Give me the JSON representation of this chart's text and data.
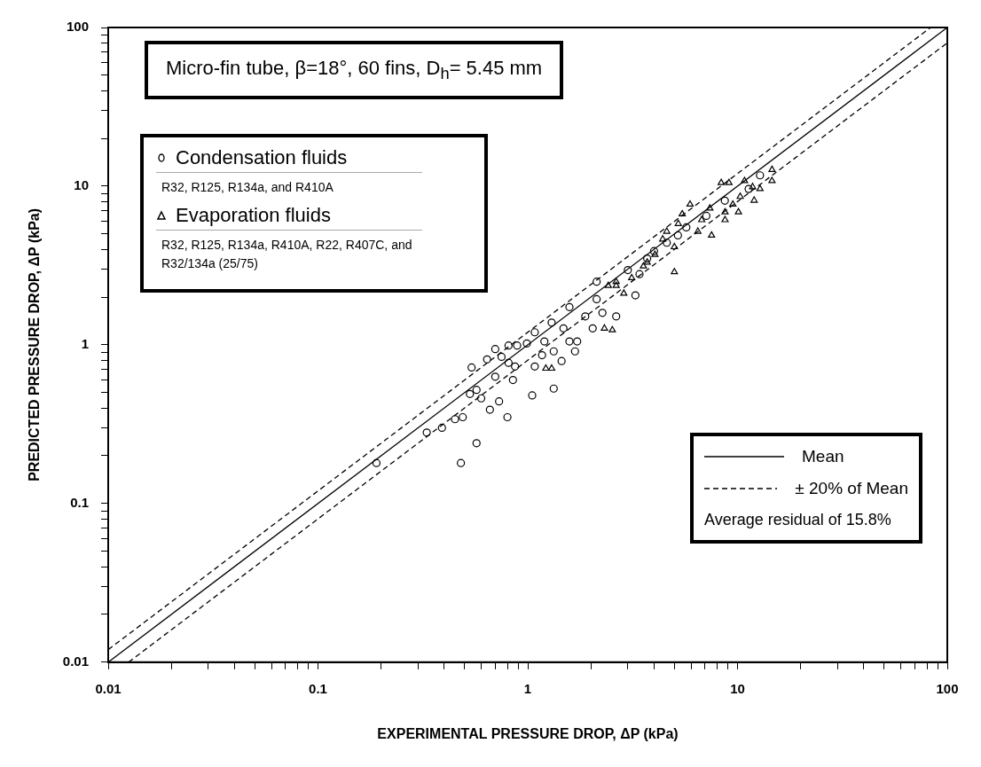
{
  "chart_data": {
    "type": "scatter",
    "title": "Micro-fin tube, β=18°, 60 fins, D$_{h}$= 5.45 mm",
    "xlabel": "EXPERIMENTAL PRESSURE DROP, ΔP (kPa)",
    "ylabel": "PREDICTED PRESSURE DROP, ΔP (kPa)",
    "log": "xy",
    "grid": false,
    "legend": "top left",
    "xlim": [
      0.01,
      100
    ],
    "ylim": [
      0.01,
      100
    ],
    "xticks": [
      0.01,
      {
        "value": 0.02,
        "label": null
      },
      {
        "value": 0.03,
        "label": null
      },
      {
        "value": 0.04,
        "label": null
      },
      {
        "value": 0.05,
        "label": null
      },
      {
        "value": 0.06,
        "label": null
      },
      {
        "value": 0.07,
        "label": null
      },
      {
        "value": 0.08,
        "label": null
      },
      {
        "value": 0.09,
        "label": null
      },
      0.1,
      {
        "value": 0.2,
        "label": null
      },
      {
        "value": 0.3,
        "label": null
      },
      {
        "value": 0.4,
        "label": null
      },
      {
        "value": 0.5,
        "label": null
      },
      {
        "value": 0.6,
        "label": null
      },
      {
        "value": 0.7,
        "label": null
      },
      {
        "value": 0.8,
        "label": null
      },
      {
        "value": 0.9,
        "label": null
      },
      1,
      {
        "value": 2,
        "label": null
      },
      {
        "value": 3,
        "label": null
      },
      {
        "value": 4,
        "label": null
      },
      {
        "value": 5,
        "label": null
      },
      {
        "value": 6,
        "label": null
      },
      {
        "value": 7,
        "label": null
      },
      {
        "value": 8,
        "label": null
      },
      {
        "value": 9,
        "label": null
      },
      10,
      {
        "value": 20,
        "label": null
      },
      {
        "value": 30,
        "label": null
      },
      {
        "value": 40,
        "label": null
      },
      {
        "value": 50,
        "label": null
      },
      {
        "value": 60,
        "label": null
      },
      {
        "value": 70,
        "label": null
      },
      {
        "value": 80,
        "label": null
      },
      {
        "value": 90,
        "label": null
      },
      100
    ],
    "yticks": [
      0.01,
      {
        "value": 0.02,
        "label": null
      },
      {
        "value": 0.03,
        "label": null
      },
      {
        "value": 0.04,
        "label": null
      },
      {
        "value": 0.05,
        "label": null
      },
      {
        "value": 0.06,
        "label": null
      },
      {
        "value": 0.07,
        "label": null
      },
      {
        "value": 0.08,
        "label": null
      },
      {
        "value": 0.09,
        "label": null
      },
      0.1,
      {
        "value": 0.2,
        "label": null
      },
      {
        "value": 0.3,
        "label": null
      },
      {
        "value": 0.4,
        "label": null
      },
      {
        "value": 0.5,
        "label": null
      },
      {
        "value": 0.6,
        "label": null
      },
      {
        "value": 0.7,
        "label": null
      },
      {
        "value": 0.8,
        "label": null
      },
      {
        "value": 0.9,
        "label": null
      },
      1,
      {
        "value": 2,
        "label": null
      },
      {
        "value": 3,
        "label": null
      },
      {
        "value": 4,
        "label": null
      },
      {
        "value": 5,
        "label": null
      },
      {
        "value": 6,
        "label": null
      },
      {
        "value": 7,
        "label": null
      },
      {
        "value": 8,
        "label": null
      },
      {
        "value": 9,
        "label": null
      },
      10,
      {
        "value": 20,
        "label": null
      },
      {
        "value": 30,
        "label": null
      },
      {
        "value": 40,
        "label": null
      },
      {
        "value": 50,
        "label": null
      },
      {
        "value": 60,
        "label": null
      },
      {
        "value": 70,
        "label": null
      },
      {
        "value": 80,
        "label": null
      },
      {
        "value": 90,
        "label": null
      },
      100
    ],
    "annotations": [
      "R32, R125, R134a, and R410A",
      "R32, R125, R134a, R410A, R22, R407C, and R32/134a (25/75)",
      "Average residual of 15.8%"
    ],
    "series": [
      {
        "name": "Condensation fluids",
        "type": "scatter",
        "marker": "circle",
        "color": "#000000",
        "x": [
          0.19,
          0.33,
          0.39,
          0.45,
          0.49,
          0.48,
          0.57,
          0.54,
          0.53,
          0.57,
          0.6,
          0.66,
          0.64,
          0.7,
          0.7,
          0.75,
          0.73,
          0.8,
          0.81,
          0.85,
          0.87,
          0.81,
          0.89,
          0.99,
          1.05,
          1.08,
          1.08,
          1.17,
          1.2,
          1.3,
          1.33,
          1.33,
          1.45,
          1.48,
          1.58,
          1.58,
          1.68,
          1.72,
          1.88,
          2.04,
          2.13,
          2.13,
          2.27,
          2.64,
          3.26,
          3.41,
          3.71,
          4.6,
          5.7,
          7.1,
          8.7,
          12.8,
          11.3,
          3.0,
          4.0,
          5.2
        ],
        "values": [
          0.18,
          0.28,
          0.3,
          0.34,
          0.35,
          0.18,
          0.24,
          0.72,
          0.49,
          0.52,
          0.46,
          0.39,
          0.81,
          0.94,
          0.63,
          0.84,
          0.44,
          0.35,
          0.77,
          0.6,
          0.73,
          0.99,
          0.99,
          1.02,
          0.48,
          0.73,
          1.2,
          0.86,
          1.05,
          1.38,
          0.53,
          0.91,
          0.79,
          1.27,
          1.73,
          1.05,
          0.91,
          1.05,
          1.51,
          1.27,
          2.5,
          1.94,
          1.59,
          1.51,
          2.05,
          2.79,
          3.5,
          4.4,
          5.5,
          6.5,
          8.1,
          11.7,
          9.6,
          2.96,
          3.9,
          4.9
        ]
      },
      {
        "name": "Evaporation fluids",
        "type": "scatter",
        "marker": "triangle",
        "color": "#000000",
        "x": [
          1.22,
          1.3,
          2.32,
          2.53,
          2.64,
          2.87,
          3.13,
          3.56,
          5.0,
          4.04,
          4.4,
          5.0,
          5.45,
          5.94,
          6.47,
          7.52,
          6.75,
          8.36,
          9.1,
          8.72,
          10.1,
          10.8,
          10.3,
          12.0,
          11.8,
          12.8,
          14.6,
          14.6,
          8.72,
          7.38,
          5.22,
          4.6,
          3.71,
          2.64,
          2.42,
          9.5
        ],
        "values": [
          0.71,
          0.71,
          1.27,
          1.24,
          2.36,
          2.11,
          2.64,
          3.13,
          2.88,
          3.7,
          4.63,
          4.14,
          6.67,
          7.68,
          5.18,
          4.9,
          6.13,
          10.5,
          10.5,
          6.87,
          6.87,
          10.8,
          8.59,
          8.13,
          9.89,
          9.62,
          12.7,
          10.8,
          6.13,
          7.26,
          5.8,
          5.18,
          3.31,
          2.5,
          2.36,
          7.68
        ]
      },
      {
        "name": "Mean",
        "type": "line",
        "marker": "none",
        "line_style": "solid",
        "color": "#000000",
        "x": [
          0.01,
          100
        ],
        "values": [
          0.01,
          100
        ]
      },
      {
        "name": "± 20% of Mean",
        "type": "line",
        "marker": "none",
        "line_style": "dashed",
        "color": "#000000",
        "x": [
          0.01,
          83.3
        ],
        "values": [
          0.012,
          100
        ]
      },
      {
        "type": "line",
        "marker": "none",
        "line_style": "dashed",
        "color": "#000000",
        "x": [
          0.0125,
          100
        ],
        "values": [
          0.01,
          80
        ]
      }
    ]
  }
}
